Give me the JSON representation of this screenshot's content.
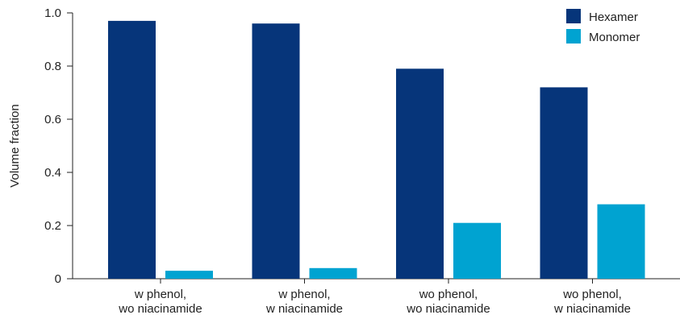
{
  "chart_data": {
    "type": "bar",
    "ylabel": "Volume fraction",
    "ylim": [
      0,
      1.0
    ],
    "yticks": [
      0,
      0.2,
      0.4,
      0.6,
      0.8,
      1.0
    ],
    "ytick_labels": [
      "0",
      "0.2",
      "0.4",
      "0.6",
      "0.8",
      "1.0"
    ],
    "categories": [
      [
        "w phenol,",
        "wo niacinamide"
      ],
      [
        "w phenol,",
        "w niacinamide"
      ],
      [
        "wo phenol,",
        "wo niacinamide"
      ],
      [
        "wo phenol,",
        "w niacinamide"
      ]
    ],
    "series": [
      {
        "name": "Hexamer",
        "color": "#06357a",
        "values": [
          0.97,
          0.96,
          0.79,
          0.72
        ]
      },
      {
        "name": "Monomer",
        "color": "#00a3d1",
        "values": [
          0.03,
          0.04,
          0.21,
          0.28
        ]
      }
    ],
    "legend_position": "top-right",
    "grid": false
  }
}
